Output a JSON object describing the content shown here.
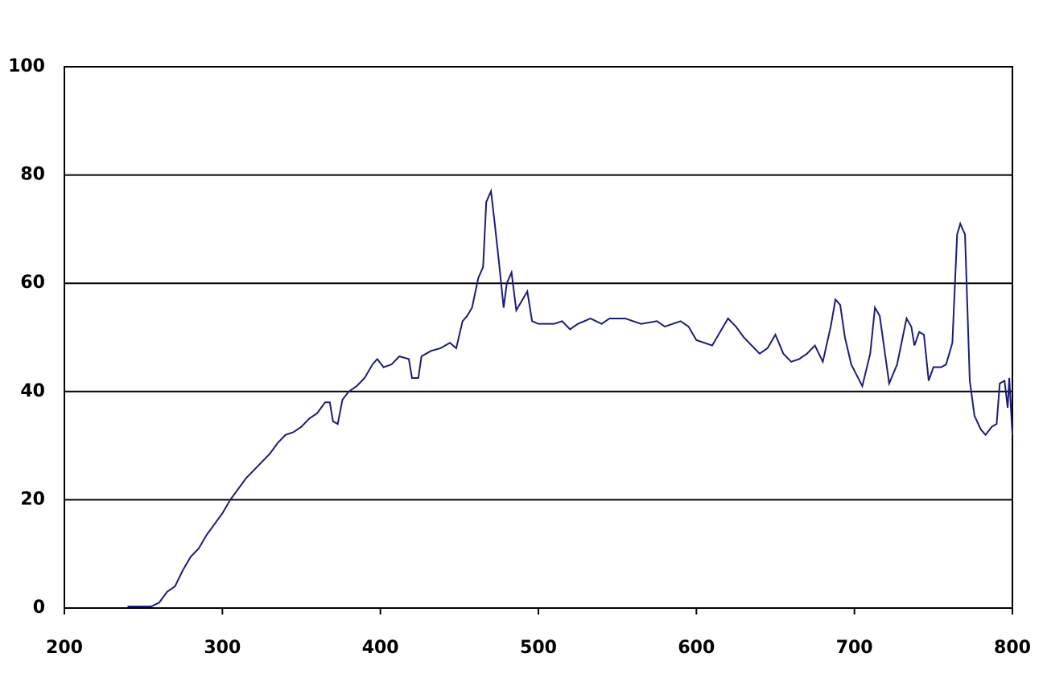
{
  "chart_data": {
    "type": "line",
    "x": [
      240,
      255,
      260,
      265,
      270,
      275,
      280,
      285,
      290,
      295,
      300,
      305,
      310,
      315,
      320,
      325,
      330,
      335,
      340,
      345,
      350,
      355,
      360,
      365,
      368,
      370,
      373,
      376,
      380,
      385,
      390,
      395,
      398,
      402,
      407,
      412,
      418,
      420,
      424,
      426,
      432,
      438,
      444,
      448,
      452,
      455,
      458,
      462,
      465,
      467,
      470,
      472,
      475,
      478,
      480,
      483,
      486,
      490,
      493,
      496,
      500,
      510,
      515,
      520,
      525,
      533,
      540,
      545,
      555,
      565,
      575,
      580,
      590,
      595,
      600,
      610,
      615,
      620,
      625,
      630,
      640,
      645,
      650,
      655,
      660,
      665,
      670,
      675,
      680,
      685,
      688,
      691,
      694,
      698,
      705,
      710,
      713,
      716,
      722,
      727,
      733,
      736,
      738,
      741,
      744,
      747,
      750,
      755,
      758,
      762,
      765,
      767,
      770,
      773,
      776,
      780,
      783,
      787,
      790,
      792,
      795,
      797,
      798,
      800
    ],
    "series": [
      {
        "color": "#1c1c78",
        "values": [
          0.3,
          0.3,
          1,
          3,
          4,
          7,
          9.5,
          11,
          13.5,
          15.5,
          17.5,
          20,
          22,
          24,
          25.5,
          27,
          28.5,
          30.5,
          32,
          32.5,
          33.5,
          35,
          36,
          38,
          38,
          34.5,
          34,
          38.5,
          40,
          41,
          42.5,
          45,
          46,
          44.5,
          45,
          46.5,
          46,
          42.5,
          42.5,
          46.5,
          47.5,
          48,
          49,
          48,
          53,
          54,
          55.5,
          61,
          63,
          75,
          77,
          72,
          64,
          55.5,
          60,
          62,
          55,
          57,
          58.5,
          53,
          52.5,
          52.5,
          53,
          51.5,
          52.5,
          53.5,
          52.5,
          53.5,
          53.5,
          52.5,
          53,
          52,
          53,
          52,
          49.5,
          48.5,
          51,
          53.5,
          52,
          50,
          47,
          48,
          50.5,
          47,
          45.5,
          46,
          47,
          48.5,
          45.5,
          52,
          57,
          56,
          50,
          45,
          41,
          47,
          55.5,
          54,
          41.5,
          45,
          53.5,
          52,
          48.5,
          51,
          50.5,
          42,
          44.5,
          44.5,
          45,
          49,
          69,
          71,
          69,
          42,
          35.5,
          33,
          32,
          33.5,
          34,
          41.5,
          42,
          37,
          42.5,
          32
        ]
      }
    ],
    "xlim": [
      200,
      800
    ],
    "xticks": [
      200,
      300,
      400,
      500,
      600,
      700,
      800
    ],
    "ylim": [
      0,
      100
    ],
    "yticks": [
      0,
      20,
      40,
      60,
      80,
      100
    ],
    "grid": true
  }
}
